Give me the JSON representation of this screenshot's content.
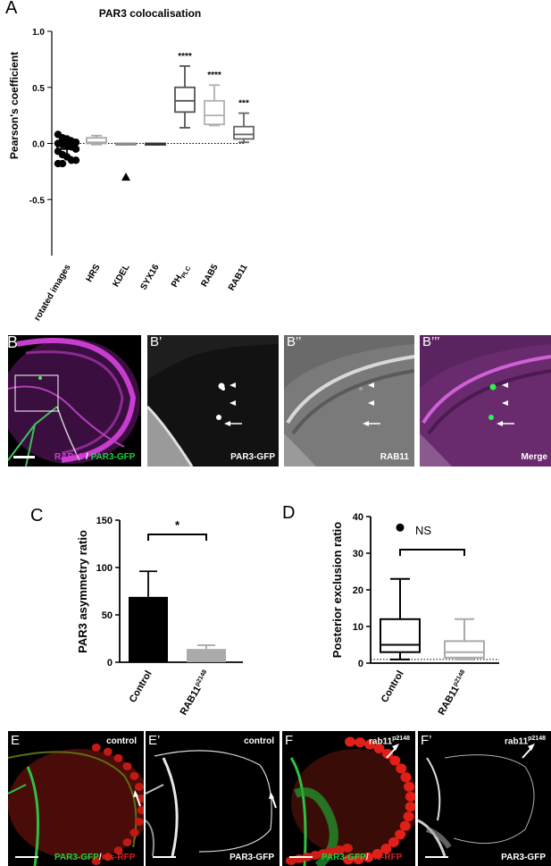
{
  "panelA": {
    "letter": "A",
    "title": "PAR3 colocalisation",
    "ylabel": "Pearson's coefficient",
    "yticks": [
      "1.0",
      "0.5",
      "0.0",
      "-0.5"
    ],
    "categories": [
      "rotated images",
      "HRS",
      "KDEL",
      "SYX16",
      "PH",
      "RAB5",
      "RAB11"
    ],
    "ph_subscript": "PLC",
    "sig": [
      "****",
      "****",
      "***"
    ]
  },
  "panelB": {
    "letters": [
      "B",
      "B’",
      "B’’",
      "B’’’"
    ],
    "label_rab11": "RAB11",
    "label_slash": " / ",
    "label_par3": "PAR3-GFP",
    "label_b1": "PAR3-GFP",
    "label_b2": "RAB11",
    "label_b3": "Merge"
  },
  "panelC": {
    "letter": "C",
    "ylabel": "PAR3 asymmetry ratio",
    "yticks": [
      "150",
      "100",
      "50",
      "0"
    ],
    "cat1": "Control",
    "cat2": "RAB11",
    "cat2_sup": "p2148",
    "sig": "*"
  },
  "panelD": {
    "letter": "D",
    "ylabel": "Posterior exclusion ratio",
    "yticks": [
      "40",
      "30",
      "20",
      "10",
      "0"
    ],
    "cat1": "Control",
    "cat2": "RAB11",
    "cat2_sup": "p2148",
    "sig": "NS"
  },
  "panelE": {
    "letters": [
      "E",
      "E’",
      "F",
      "F’"
    ],
    "control": "control",
    "rab": "rab11",
    "rab_sup": "p2148",
    "label_gfp": "PAR3-GFP",
    "label_slash": "/",
    "label_rfp": "nls-RFP",
    "label_gray": "PAR3-GFP"
  },
  "colors": {
    "magenta": "#d040d8",
    "green": "#20d040",
    "red": "#e02020"
  },
  "chart_data": [
    {
      "type": "box",
      "title": "PAR3 colocalisation",
      "ylabel": "Pearson's coefficient",
      "ylim": [
        -1.0,
        1.0
      ],
      "categories": [
        "rotated images",
        "HRS",
        "KDEL",
        "SYX16",
        "PHPLC",
        "RAB5",
        "RAB11"
      ],
      "boxes": [
        {
          "name": "rotated images",
          "q1": -0.05,
          "median": 0.0,
          "q3": 0.02,
          "whisker_low": -0.12,
          "whisker_high": 0.05,
          "points": [
            0.08,
            0.05,
            0.04,
            0.02,
            0.01,
            0.0,
            -0.01,
            -0.02,
            -0.03,
            -0.05,
            -0.07,
            -0.1,
            -0.12,
            -0.15,
            -0.15,
            -0.18,
            -0.18
          ]
        },
        {
          "name": "HRS",
          "q1": 0.0,
          "median": 0.01,
          "q3": 0.05,
          "whisker_low": -0.01,
          "whisker_high": 0.07
        },
        {
          "name": "KDEL",
          "q1": -0.01,
          "median": 0.0,
          "q3": 0.0,
          "whisker_low": -0.01,
          "whisker_high": 0.0,
          "outliers": [
            -0.3
          ]
        },
        {
          "name": "SYX16",
          "q1": -0.01,
          "median": 0.0,
          "q3": 0.0,
          "whisker_low": -0.01,
          "whisker_high": 0.0
        },
        {
          "name": "PHPLC",
          "q1": 0.28,
          "median": 0.38,
          "q3": 0.5,
          "whisker_low": 0.14,
          "whisker_high": 0.69
        },
        {
          "name": "RAB5",
          "q1": 0.17,
          "median": 0.25,
          "q3": 0.38,
          "whisker_low": 0.16,
          "whisker_high": 0.52
        },
        {
          "name": "RAB11",
          "q1": 0.04,
          "median": 0.08,
          "q3": 0.15,
          "whisker_low": 0.01,
          "whisker_high": 0.27
        }
      ],
      "significance": [
        "",
        "",
        "",
        "",
        "****",
        "****",
        "***"
      ]
    },
    {
      "type": "bar",
      "ylabel": "PAR3 asymmetry ratio",
      "ylim": [
        0,
        150
      ],
      "categories": [
        "Control",
        "RAB11p2148"
      ],
      "values": [
        69,
        14
      ],
      "error": [
        27,
        4
      ],
      "significance": "*"
    },
    {
      "type": "box",
      "ylabel": "Posterior exclusion ratio",
      "ylim": [
        0,
        40
      ],
      "categories": [
        "Control",
        "RAB11p2148"
      ],
      "boxes": [
        {
          "name": "Control",
          "q1": 3.0,
          "median": 5.0,
          "q3": 12.0,
          "whisker_low": 1.0,
          "whisker_high": 23.0,
          "outliers": [
            37
          ]
        },
        {
          "name": "RAB11p2148",
          "q1": 1.5,
          "median": 3.0,
          "q3": 6.0,
          "whisker_low": 1.0,
          "whisker_high": 12.0
        }
      ],
      "reference_line": 1,
      "significance": "NS"
    }
  ]
}
